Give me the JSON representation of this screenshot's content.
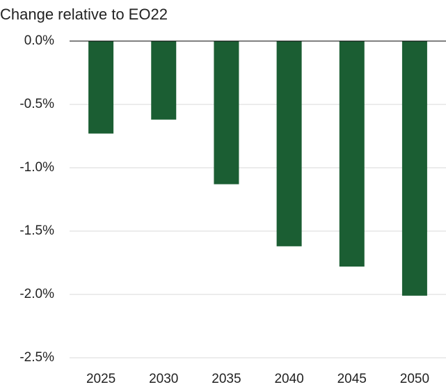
{
  "chart_data": {
    "type": "bar",
    "title": "Change relative to EO22",
    "categories": [
      "2025",
      "2030",
      "2035",
      "2040",
      "2045",
      "2050"
    ],
    "values": [
      -0.73,
      -0.62,
      -1.13,
      -1.62,
      -1.78,
      -2.01
    ],
    "color": "#1b5e33",
    "ylim": [
      -2.5,
      0
    ],
    "yticks": [
      {
        "value": 0,
        "label": "0.0%"
      },
      {
        "value": -0.5,
        "label": "-0.5%"
      },
      {
        "value": -1,
        "label": "-1.0%"
      },
      {
        "value": -1.5,
        "label": "-1.5%"
      },
      {
        "value": -2,
        "label": "-2.0%"
      },
      {
        "value": -2.5,
        "label": "-2.5%"
      }
    ],
    "grid": true
  }
}
